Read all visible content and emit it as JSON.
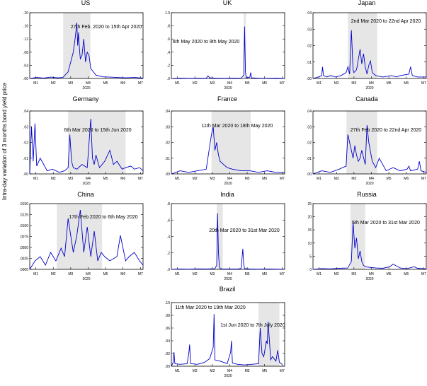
{
  "figure": {
    "ylabel": "Intra-day variation of 3 months bond yield price"
  },
  "chart_data": [
    {
      "type": "line",
      "title": "US",
      "x_tick_labels": [
        "M1",
        "M2",
        "M3",
        "M4",
        "M5",
        "M6",
        "M7"
      ],
      "x_year_label": "2020",
      "y_ticks": [
        ".00",
        ".04",
        ".08",
        ".12",
        ".16",
        ".20"
      ],
      "ylim": [
        0,
        0.2
      ],
      "shaded_range": [
        1.92,
        3.48
      ],
      "shaded_label": "27th Feb. 2020 to 15th Apr 2020",
      "series": [
        {
          "x": [
            0,
            0.4,
            0.8,
            1.2,
            1.6,
            1.9,
            2.2,
            2.5,
            2.6,
            2.7,
            2.75,
            2.8,
            2.85,
            2.9,
            3.0,
            3.1,
            3.2,
            3.3,
            3.4,
            3.5,
            3.8,
            4.2,
            4.6,
            5.0,
            5.5,
            6.0,
            6.5
          ],
          "values": [
            0,
            0.003,
            0.001,
            0.004,
            0.002,
            0.003,
            0.02,
            0.08,
            0.12,
            0.17,
            0.1,
            0.14,
            0.09,
            0.06,
            0.07,
            0.12,
            0.05,
            0.08,
            0.07,
            0.03,
            0.01,
            0.005,
            0.004,
            0.003,
            0.002,
            0.003,
            0.001
          ]
        }
      ]
    },
    {
      "type": "line",
      "title": "UK",
      "x_tick_labels": [
        "M1",
        "M2",
        "M3",
        "M4",
        "M5",
        "M6",
        "M7"
      ],
      "x_year_label": "2020",
      "y_ticks": [
        ".0",
        ".2",
        ".4",
        ".6",
        ".8",
        "1.0"
      ],
      "ylim": [
        0,
        1.0
      ],
      "shaded_range": [
        4.15,
        4.28
      ],
      "shaded_label": "6th May 2020 to 9th May 2020",
      "series": [
        {
          "x": [
            0,
            0.5,
            1.0,
            1.5,
            2.0,
            2.1,
            2.2,
            2.5,
            3.0,
            3.5,
            4.0,
            4.15,
            4.2,
            4.25,
            4.3,
            4.5,
            4.55,
            4.6,
            5.0,
            5.5,
            6.0,
            6.5
          ],
          "values": [
            0,
            0.005,
            0.002,
            0.004,
            0.003,
            0.04,
            0.01,
            0.005,
            0.003,
            0.006,
            0.004,
            0.05,
            0.79,
            0.1,
            0.01,
            0.02,
            0.09,
            0.01,
            0.004,
            0.003,
            0.005,
            0.002
          ]
        }
      ]
    },
    {
      "type": "line",
      "title": "Japan",
      "x_tick_labels": [
        "M1",
        "M2",
        "M3",
        "M4",
        "M5",
        "M6",
        "M7"
      ],
      "x_year_label": "2020",
      "y_ticks": [
        ".00",
        ".01",
        ".02",
        ".03",
        ".04"
      ],
      "ylim": [
        0,
        0.045
      ],
      "shaded_range": [
        2.0,
        3.68
      ],
      "shaded_label": "2nd Mar 2020 to 22nd Apr 2020",
      "series": [
        {
          "x": [
            0,
            0.3,
            0.5,
            0.55,
            0.6,
            0.8,
            1.0,
            1.3,
            1.6,
            1.9,
            2.0,
            2.1,
            2.2,
            2.3,
            2.35,
            2.5,
            2.7,
            2.8,
            2.9,
            3.0,
            3.1,
            3.2,
            3.3,
            3.4,
            3.6,
            4.0,
            4.5,
            4.8,
            5.0,
            5.5,
            5.6,
            5.7,
            6.0,
            6.5
          ],
          "values": [
            0,
            0.001,
            0.002,
            0.008,
            0.002,
            0.001,
            0.002,
            0.001,
            0.002,
            0.004,
            0.008,
            0.003,
            0.033,
            0.006,
            0.004,
            0.006,
            0.02,
            0.01,
            0.017,
            0.008,
            0.003,
            0.009,
            0.012,
            0.004,
            0.002,
            0.001,
            0.002,
            0.001,
            0.002,
            0.003,
            0.008,
            0.002,
            0.001,
            0.001
          ]
        }
      ]
    },
    {
      "type": "line",
      "title": "Germany",
      "x_tick_labels": [
        "M1",
        "M2",
        "M3",
        "M4",
        "M5",
        "M6",
        "M7"
      ],
      "x_year_label": "2020",
      "y_ticks": [
        ".00",
        ".01",
        ".02",
        ".03",
        ".04"
      ],
      "ylim": [
        0,
        0.04
      ],
      "shaded_range": [
        2.2,
        5.5
      ],
      "shaded_label": "6th Mar 2020 to 15th Jun 2020",
      "series": [
        {
          "x": [
            0,
            0.1,
            0.2,
            0.3,
            0.4,
            0.6,
            1.0,
            1.3,
            1.7,
            2.0,
            2.2,
            2.3,
            2.4,
            2.5,
            2.7,
            3.0,
            3.3,
            3.5,
            3.6,
            3.7,
            3.8,
            4.0,
            4.3,
            4.6,
            4.8,
            5.0,
            5.3,
            5.5,
            5.8,
            6.0,
            6.3,
            6.5
          ],
          "values": [
            0,
            0.03,
            0.008,
            0.032,
            0.005,
            0.01,
            0.002,
            0.003,
            0.001,
            0.002,
            0.004,
            0.025,
            0.008,
            0.004,
            0.003,
            0.006,
            0.004,
            0.035,
            0.01,
            0.006,
            0.012,
            0.004,
            0.008,
            0.015,
            0.006,
            0.008,
            0.003,
            0.004,
            0.005,
            0.003,
            0.004,
            0.002
          ]
        }
      ]
    },
    {
      "type": "line",
      "title": "France",
      "x_tick_labels": [
        "M1",
        "M2",
        "M3",
        "M4",
        "M5",
        "M6",
        "M7"
      ],
      "x_year_label": "2020",
      "y_ticks": [
        ".00",
        ".01",
        ".02",
        ".03",
        ".04"
      ],
      "ylim": [
        0,
        0.04
      ],
      "shaded_range": [
        2.3,
        4.55
      ],
      "shaded_label": "11th Mar 2020 to 18th May 2020",
      "series": [
        {
          "x": [
            0,
            0.5,
            1.0,
            1.5,
            2.0,
            2.3,
            2.4,
            2.5,
            2.6,
            2.7,
            2.8,
            3.0,
            3.2,
            3.5,
            4.0,
            4.5,
            5.0,
            5.5,
            6.0,
            6.5
          ],
          "values": [
            0,
            0.002,
            0.001,
            0.002,
            0.003,
            0.025,
            0.03,
            0.015,
            0.02,
            0.012,
            0.008,
            0.006,
            0.004,
            0.003,
            0.002,
            0.002,
            0.001,
            0.002,
            0.001,
            0.001
          ]
        }
      ]
    },
    {
      "type": "line",
      "title": "Canada",
      "x_tick_labels": [
        "M1",
        "M2",
        "M3",
        "M4",
        "M5",
        "M6",
        "M7"
      ],
      "x_year_label": "2020",
      "y_ticks": [
        ".00",
        ".01",
        ".02",
        ".03",
        ".04"
      ],
      "ylim": [
        0,
        0.04
      ],
      "shaded_range": [
        1.92,
        3.68
      ],
      "shaded_label": "27th Feb 2020 to 22nd Apr 2020",
      "series": [
        {
          "x": [
            0,
            0.5,
            1.0,
            1.5,
            1.9,
            2.0,
            2.1,
            2.2,
            2.3,
            2.4,
            2.5,
            2.6,
            2.7,
            2.8,
            3.0,
            3.1,
            3.2,
            3.4,
            3.6,
            3.8,
            4.2,
            4.6,
            5.0,
            5.4,
            5.5,
            5.6,
            6.0,
            6.1,
            6.2,
            6.5
          ],
          "values": [
            0,
            0.002,
            0.001,
            0.003,
            0.005,
            0.025,
            0.02,
            0.015,
            0.01,
            0.018,
            0.012,
            0.008,
            0.01,
            0.015,
            0.006,
            0.031,
            0.02,
            0.008,
            0.004,
            0.01,
            0.002,
            0.004,
            0.002,
            0.003,
            0.005,
            0.002,
            0.003,
            0.008,
            0.002,
            0.001
          ]
        }
      ]
    },
    {
      "type": "line",
      "title": "China",
      "x_tick_labels": [
        "M1",
        "M2",
        "M3",
        "M4",
        "M5",
        "M6",
        "M7"
      ],
      "x_year_label": "2020",
      "y_ticks": [
        ".0000",
        ".0025",
        ".0050",
        ".0075",
        ".0100",
        ".0125",
        ".0150"
      ],
      "ylim": [
        0,
        0.0155
      ],
      "shaded_range": [
        1.55,
        4.15
      ],
      "shaded_label": "17th Feb 2020 to 6th May 2020",
      "series": [
        {
          "x": [
            0,
            0.3,
            0.6,
            0.9,
            1.2,
            1.5,
            1.8,
            2.0,
            2.2,
            2.5,
            2.7,
            2.9,
            3.1,
            3.3,
            3.5,
            3.7,
            3.9,
            4.1,
            4.3,
            4.6,
            5.0,
            5.2,
            5.5,
            5.7,
            6.0,
            6.3,
            6.5
          ],
          "values": [
            0,
            0.002,
            0.003,
            0.001,
            0.004,
            0.002,
            0.005,
            0.003,
            0.012,
            0.004,
            0.008,
            0.014,
            0.004,
            0.01,
            0.003,
            0.009,
            0.002,
            0.004,
            0.003,
            0.002,
            0.003,
            0.008,
            0.002,
            0.003,
            0.004,
            0.002,
            0.001
          ]
        }
      ]
    },
    {
      "type": "line",
      "title": "India",
      "x_tick_labels": [
        "M1",
        "M2",
        "M3",
        "M4",
        "M5",
        "M6",
        "M7"
      ],
      "x_year_label": "2020",
      "y_ticks": [
        ".0",
        ".2",
        ".4",
        ".6",
        ".8"
      ],
      "ylim": [
        0,
        0.8
      ],
      "shaded_range": [
        2.6,
        2.95
      ],
      "shaded_label": "20th Mar 2020 to 31st Mar 2020",
      "series": [
        {
          "x": [
            0,
            0.5,
            1.0,
            1.5,
            2.0,
            2.5,
            2.6,
            2.65,
            2.7,
            2.75,
            2.8,
            2.9,
            3.2,
            3.5,
            3.8,
            4.0,
            4.1,
            4.15,
            4.2,
            4.5,
            5.0,
            5.5,
            6.0,
            6.5
          ],
          "values": [
            0,
            0.005,
            0.003,
            0.006,
            0.004,
            0.008,
            0.05,
            0.68,
            0.2,
            0.05,
            0.01,
            0.006,
            0.005,
            0.004,
            0.005,
            0.01,
            0.25,
            0.06,
            0.01,
            0.004,
            0.003,
            0.005,
            0.003,
            0.002
          ]
        }
      ]
    },
    {
      "type": "line",
      "title": "Russia",
      "x_tick_labels": [
        "M1",
        "M2",
        "M3",
        "M4",
        "M5",
        "M6",
        "M7"
      ],
      "x_year_label": "2020",
      "y_ticks": [
        "0",
        "5",
        "10",
        "15",
        "20",
        "25"
      ],
      "ylim": [
        0,
        25
      ],
      "shaded_range": [
        2.15,
        3.0
      ],
      "shaded_label": "5th Mar 2020 to 31st Mar 2020",
      "series": [
        {
          "x": [
            0,
            0.5,
            1.0,
            1.5,
            2.0,
            2.2,
            2.3,
            2.4,
            2.5,
            2.6,
            2.7,
            2.8,
            2.9,
            3.0,
            3.2,
            3.6,
            4.0,
            4.4,
            4.6,
            5.0,
            5.4,
            5.8,
            6.0,
            6.5
          ],
          "values": [
            0,
            0.3,
            0.2,
            0.4,
            0.5,
            3,
            18,
            8,
            12,
            4,
            7,
            3,
            1.5,
            1,
            0.8,
            0.5,
            0.4,
            1,
            2,
            0.5,
            0.3,
            1,
            0.4,
            0.2
          ]
        }
      ]
    },
    {
      "type": "line",
      "title": "Brazil",
      "x_tick_labels": [
        "M1",
        "M2",
        "M3",
        "M4",
        "M5",
        "M6",
        "M7"
      ],
      "x_year_label": "2020",
      "y_ticks": [
        ".00",
        ".02",
        ".04",
        ".06",
        ".08",
        ".10"
      ],
      "ylim": [
        0,
        0.1
      ],
      "shaded_range": [
        5.0,
        6.2
      ],
      "shaded_label": "1st Jun 2020 to 7th July 2020",
      "annotations": [
        "11th Mar 2020 to 19th Mar 2020"
      ],
      "series": [
        {
          "x": [
            0,
            0.1,
            0.15,
            0.2,
            0.5,
            0.9,
            1.0,
            1.05,
            1.1,
            1.5,
            1.9,
            2.2,
            2.4,
            2.45,
            2.5,
            2.8,
            3.0,
            3.2,
            3.4,
            3.45,
            3.5,
            3.8,
            4.2,
            4.6,
            5.0,
            5.1,
            5.2,
            5.3,
            5.45,
            5.5,
            5.55,
            5.7,
            5.8,
            6.0,
            6.1,
            6.2,
            6.35
          ],
          "values": [
            0,
            0.006,
            0.022,
            0.004,
            0.003,
            0.004,
            0.02,
            0.034,
            0.004,
            0.003,
            0.006,
            0.012,
            0.03,
            0.082,
            0.01,
            0.008,
            0.006,
            0.004,
            0.022,
            0.04,
            0.005,
            0.003,
            0.002,
            0.003,
            0.004,
            0.06,
            0.02,
            0.015,
            0.04,
            0.035,
            0.07,
            0.01,
            0.015,
            0.008,
            0.025,
            0.006,
            0.003
          ]
        }
      ]
    }
  ]
}
